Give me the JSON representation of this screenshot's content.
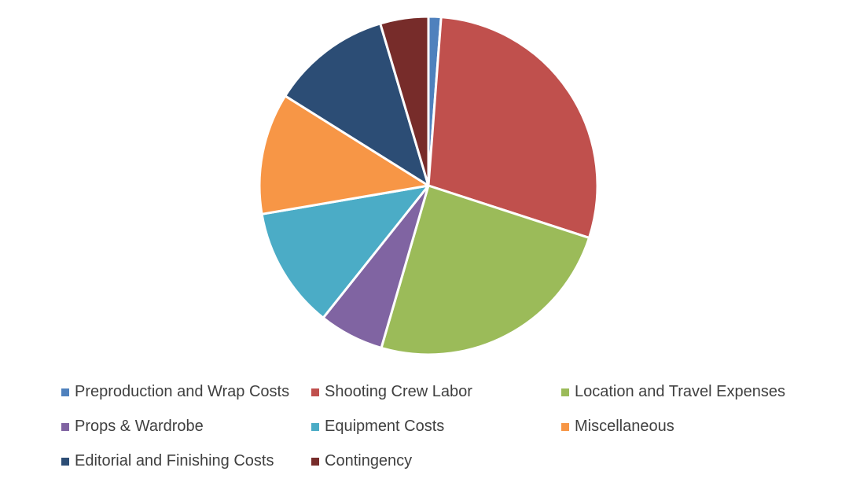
{
  "chart_data": {
    "type": "pie",
    "title": "",
    "start_angle_deg": 0,
    "direction": "clockwise",
    "legend_position": "bottom",
    "slices": [
      {
        "label": "Preproduction and Wrap Costs",
        "value": 1.2,
        "color": "#4F81BD"
      },
      {
        "label": "Shooting Crew Labor",
        "value": 28.8,
        "color": "#C0504D"
      },
      {
        "label": "Location and Travel Expenses",
        "value": 24.5,
        "color": "#9BBB59"
      },
      {
        "label": "Props & Wardrobe",
        "value": 6.2,
        "color": "#8064A2"
      },
      {
        "label": "Equipment Costs",
        "value": 11.6,
        "color": "#4BACC6"
      },
      {
        "label": "Miscellaneous",
        "value": 11.6,
        "color": "#F79646"
      },
      {
        "label": "Editorial and Finishing Costs",
        "value": 11.5,
        "color": "#2C4D75"
      },
      {
        "label": "Contingency",
        "value": 4.6,
        "color": "#772C2A"
      }
    ]
  }
}
